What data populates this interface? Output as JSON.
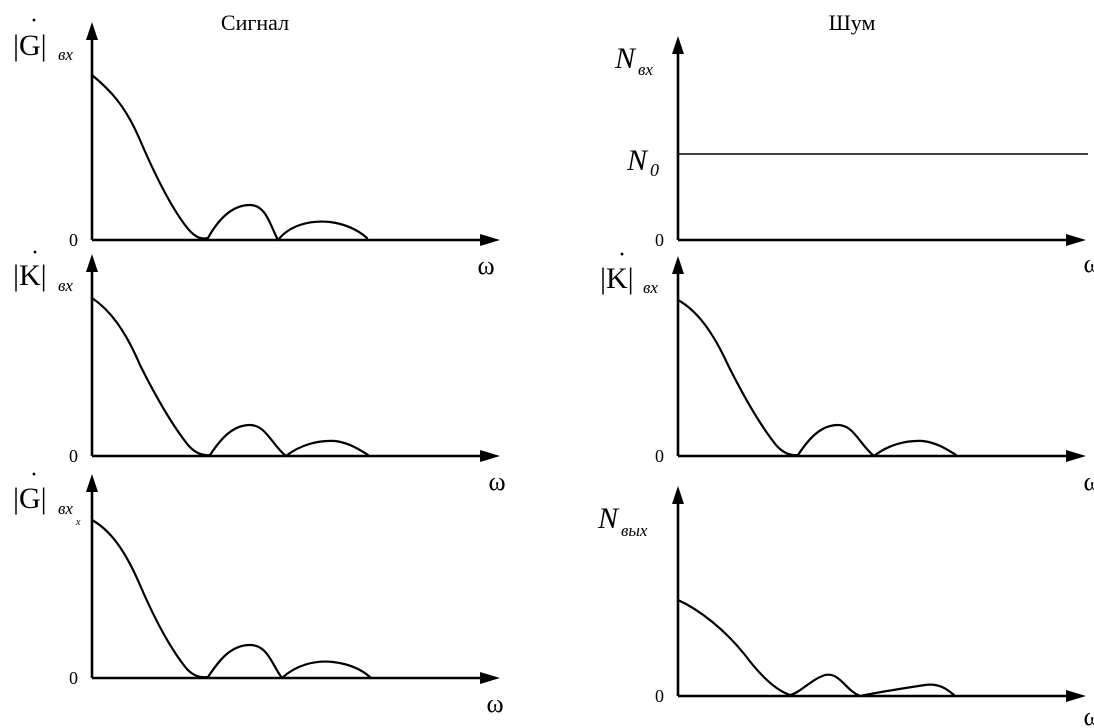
{
  "columns": {
    "left_title": "Сигнал",
    "right_title": "Шум"
  },
  "zero_label": "0",
  "omega_label": "ω",
  "dot_mark": "·",
  "panels": {
    "sig_in": {
      "y_main": "|G|",
      "y_sub": "вх"
    },
    "sig_k": {
      "y_main": "|K|",
      "y_sub": "вх"
    },
    "sig_out": {
      "y_main": "|G|",
      "y_sub": "вх",
      "y_sub2": "х"
    },
    "noise_in": {
      "y_main": "N",
      "y_sub": "вх",
      "level_main": "N",
      "level_sub": "0"
    },
    "noise_k": {
      "y_main": "|K|",
      "y_sub": "вх"
    },
    "noise_out": {
      "y_main": "N",
      "y_sub": "вых"
    }
  },
  "colors": {
    "ink": "#000000",
    "background": "#ffffff"
  }
}
